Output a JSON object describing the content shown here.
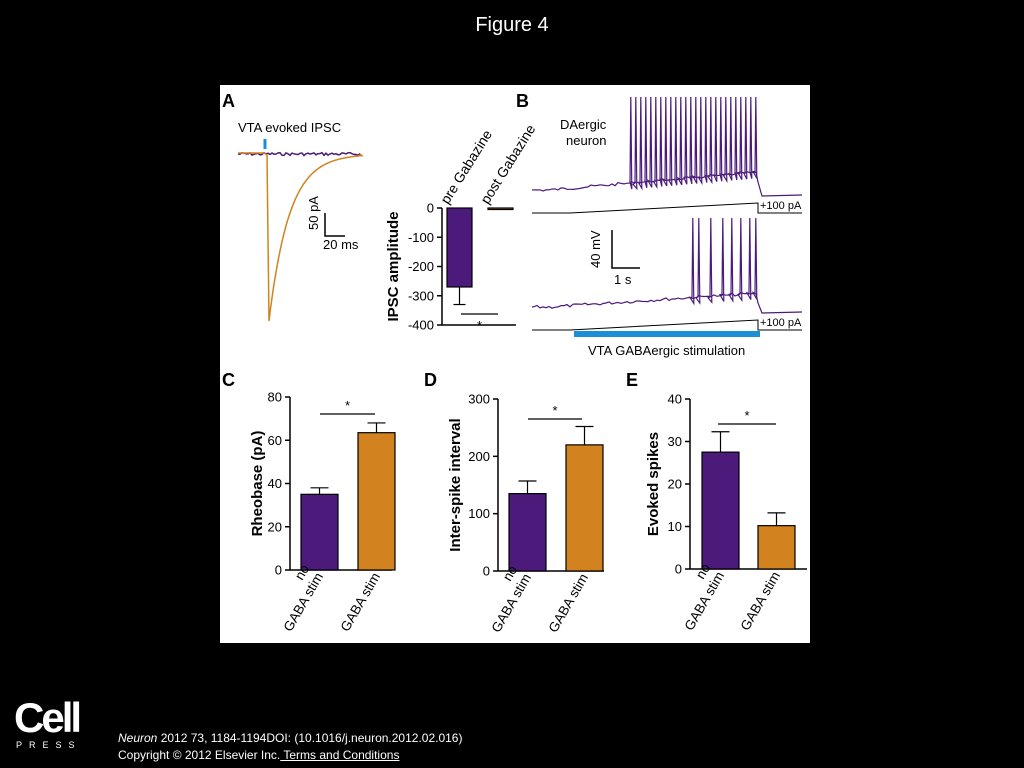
{
  "page": {
    "title": "Figure 4"
  },
  "footer": {
    "logo_word": "Cell",
    "logo_press": "PRESS",
    "citation_journal": "Neuron",
    "citation_rest": " 2012 73, 1184-1194DOI: (10.1016/j.neuron.2012.02.016)",
    "copyright": "Copyright © 2012 Elsevier Inc.",
    "terms_link": " Terms and Conditions"
  },
  "colors": {
    "purple": "#4b1a7a",
    "orange": "#d2821e",
    "blue": "#1a8fd6"
  },
  "panelA": {
    "letter": "A",
    "trace_label": "VTA evoked IPSC",
    "scale_y": "50 pA",
    "scale_x": "20 ms"
  },
  "panelB": {
    "letter": "B",
    "neuron_label_1": "DAergic",
    "neuron_label_2": "neuron",
    "ramp_label_top": "+100 pA",
    "ramp_label_bottom": "+100 pA",
    "scale_y": "40 mV",
    "scale_x": "1 s",
    "stim_label": "VTA GABAergic stimulation"
  },
  "chart_data": [
    {
      "type": "bar",
      "panel": "A",
      "categories": [
        "pre Gabazine",
        "post Gabazine"
      ],
      "values": [
        -270,
        -5
      ],
      "errors": [
        60,
        0
      ],
      "ylabel": "IPSC amplitude",
      "ylim": [
        -400,
        0
      ],
      "yticks": [
        "0",
        "-100",
        "-200",
        "-300",
        "-400"
      ],
      "significance": "*"
    },
    {
      "type": "bar",
      "panel": "C",
      "letter": "C",
      "categories": [
        "no GABA stim",
        "GABA stim"
      ],
      "cat_line1": [
        "no",
        ""
      ],
      "cat_line2": [
        "GABA stim",
        "GABA stim"
      ],
      "values": [
        35,
        63.5
      ],
      "errors": [
        3,
        4.5
      ],
      "ylabel": "Rheobase (pA)",
      "ylim": [
        0,
        80
      ],
      "yticks": [
        "80",
        "60",
        "40",
        "20",
        "0"
      ],
      "significance": "*"
    },
    {
      "type": "bar",
      "panel": "D",
      "letter": "D",
      "categories": [
        "no GABA stim",
        "GABA stim"
      ],
      "cat_line1": [
        "no",
        ""
      ],
      "cat_line2": [
        "GABA stim",
        "GABA stim"
      ],
      "values": [
        135,
        220
      ],
      "errors": [
        22,
        32
      ],
      "ylabel": "Inter-spike interval",
      "ylim": [
        0,
        300
      ],
      "yticks": [
        "300",
        "200",
        "100",
        "0"
      ],
      "significance": "*"
    },
    {
      "type": "bar",
      "panel": "E",
      "letter": "E",
      "categories": [
        "no GABA stim",
        "GABA stim"
      ],
      "cat_line1": [
        "no",
        ""
      ],
      "cat_line2": [
        "GABA stim",
        "GABA stim"
      ],
      "values": [
        27.5,
        10.2
      ],
      "errors": [
        4.8,
        3
      ],
      "ylabel": "Evoked spikes",
      "ylim": [
        0,
        40
      ],
      "yticks": [
        "40",
        "30",
        "20",
        "10",
        "0"
      ],
      "significance": "*"
    }
  ]
}
